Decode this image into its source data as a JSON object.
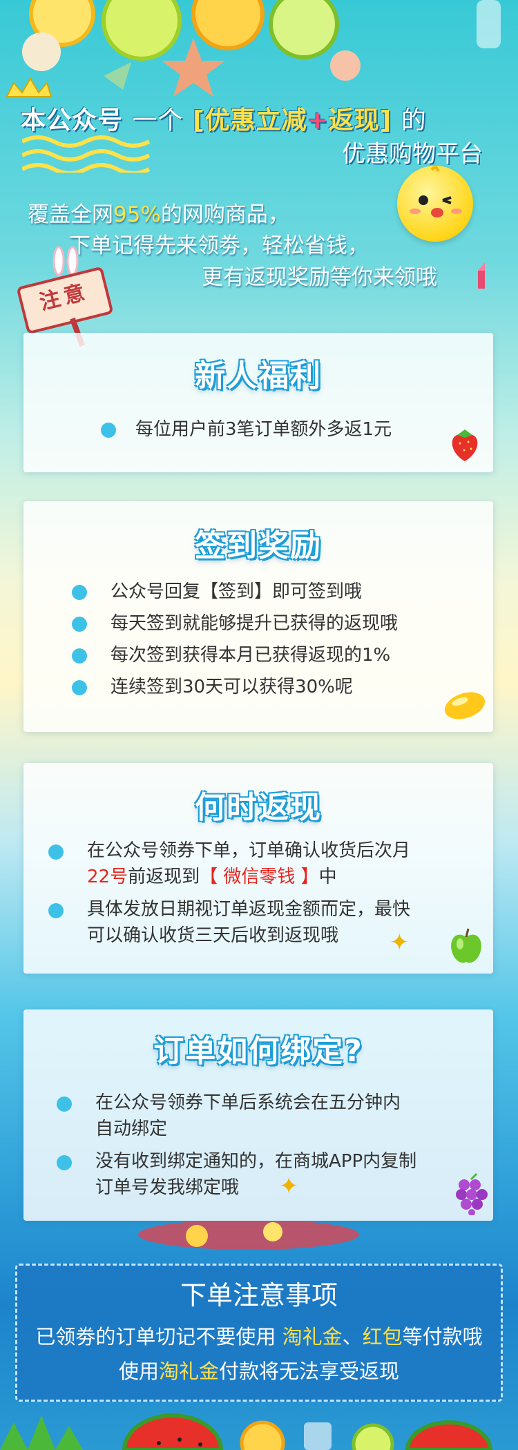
{
  "header": {
    "line1_part1": "本公众号",
    "line1_part2": "一个",
    "line1_bracket_open": "[",
    "line1_highlight1": "优惠立减",
    "line1_plus": "+",
    "line1_highlight2": "返现",
    "line1_bracket_close": "]",
    "line1_part3": "的",
    "line2": "优惠购物平台"
  },
  "intro": {
    "line1_a": "覆盖全网",
    "line1_pct": "95%",
    "line1_b": "的网购商品，",
    "line2": "下单记得先来领劵，轻松省钱，",
    "line3": "更有返现奖励等你来领哦"
  },
  "sign": {
    "label": "注意"
  },
  "cards": {
    "newuser": {
      "title": "新人福利",
      "items": [
        "每位用户前3笔订单额外多返1元"
      ]
    },
    "checkin": {
      "title": "签到奖励",
      "items": [
        "公众号回复【签到】即可签到哦",
        "每天签到就能够提升已获得的返现哦",
        "每次签到获得本月已获得返现的1%",
        "连续签到30天可以获得30%呢"
      ]
    },
    "cashback": {
      "title": "何时返现",
      "item1_line1": "在公众号领券下单，订单确认收货后次月",
      "item1_line2_red1": "22号",
      "item1_line2_mid": "前返现到",
      "item1_line2_red2": "【 微信零钱 】",
      "item1_line2_end": "中",
      "item2_line1": "具体发放日期视订单返现金额而定，最快",
      "item2_line2": "可以确认收货三天后收到返现哦"
    },
    "bind": {
      "title": "订单如何绑定?",
      "item1_line1": "在公众号领券下单后系统会在五分钟内",
      "item1_line2": "自动绑定",
      "item2_line1": "没有收到绑定通知的，在商城APP内复制",
      "item2_line2": "订单号发我绑定哦"
    }
  },
  "notice": {
    "title": "下单注意事项",
    "line1_a": "已领劵的订单切记不要使用 ",
    "line1_y1": "淘礼金",
    "line1_sep": "、",
    "line1_y2": "红包",
    "line1_b": "等付款哦",
    "line2_a": "使用",
    "line2_y": "淘礼金",
    "line2_b": "付款将无法享受返现"
  },
  "colors": {
    "accent_blue": "#1e9ed8",
    "highlight_yellow": "#ffe14a",
    "warning_red": "#e8251f"
  }
}
